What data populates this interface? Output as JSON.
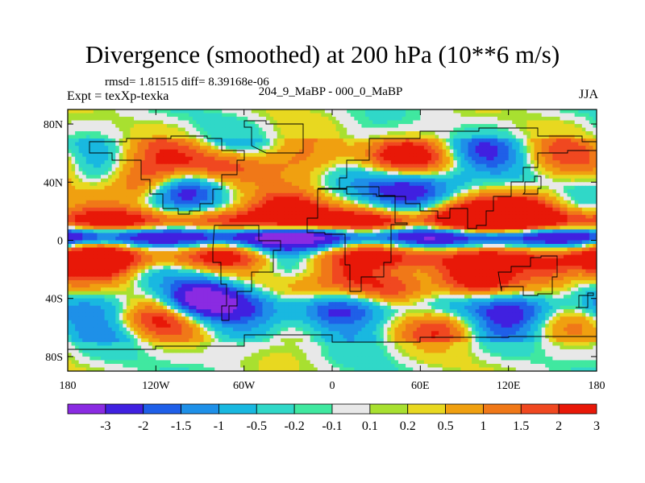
{
  "chart_data": {
    "type": "heatmap",
    "title": "Divergence (smoothed) at 200 hPa (10**6 m/s)",
    "left_annotation": "rmsd= 1.81515 diff= 8.39168e-06",
    "left_string": "Expt = texXp-texka",
    "center_string": "204_9_MaBP - 000_0_MaBP",
    "right_string": "JJA",
    "x_range": [
      -180,
      180
    ],
    "y_range": [
      -90,
      90
    ],
    "x_ticks": [
      {
        "value": -180,
        "label": "180"
      },
      {
        "value": -120,
        "label": "120W"
      },
      {
        "value": -60,
        "label": "60W"
      },
      {
        "value": 0,
        "label": "0"
      },
      {
        "value": 60,
        "label": "60E"
      },
      {
        "value": 120,
        "label": "120E"
      },
      {
        "value": 180,
        "label": "180"
      }
    ],
    "y_ticks": [
      {
        "value": 80,
        "label": "80N"
      },
      {
        "value": 40,
        "label": "40N"
      },
      {
        "value": 0,
        "label": "0"
      },
      {
        "value": -40,
        "label": "40S"
      },
      {
        "value": -80,
        "label": "80S"
      }
    ],
    "levels": [
      "-3",
      "-2",
      "-1.5",
      "-1",
      "-0.5",
      "-0.2",
      "-0.1",
      "0.1",
      "0.2",
      "0.5",
      "1",
      "1.5",
      "2",
      "3"
    ],
    "colors": [
      "#8a2be2",
      "#4020e0",
      "#1f5fe8",
      "#1e90e8",
      "#19b8e0",
      "#30d8c8",
      "#40e8a0",
      "#e8e8e8",
      "#a8e030",
      "#e8d820",
      "#f0a010",
      "#f07818",
      "#f04820",
      "#e81808"
    ],
    "features": [
      {
        "lon": -90,
        "lat": -40,
        "value": -3
      },
      {
        "lon": -30,
        "lat": 20,
        "value": 2.5
      },
      {
        "lon": 10,
        "lat": -25,
        "value": 2
      },
      {
        "lon": 40,
        "lat": -35,
        "value": 2.5
      },
      {
        "lon": 100,
        "lat": -25,
        "value": 2.5
      },
      {
        "lon": 150,
        "lat": -20,
        "value": 2.2
      },
      {
        "lon": -160,
        "lat": -15,
        "value": 3
      },
      {
        "lon": 90,
        "lat": 15,
        "value": 3
      },
      {
        "lon": 130,
        "lat": 20,
        "value": 2.5
      },
      {
        "lon": -100,
        "lat": 35,
        "value": -2.2
      },
      {
        "lon": -130,
        "lat": 40,
        "value": 2
      },
      {
        "lon": -70,
        "lat": 50,
        "value": 1.5
      },
      {
        "lon": 45,
        "lat": 60,
        "value": 1.8
      },
      {
        "lon": 100,
        "lat": 60,
        "value": -1.5
      },
      {
        "lon": 50,
        "lat": 35,
        "value": -2
      },
      {
        "lon": 75,
        "lat": 40,
        "value": -1.5
      },
      {
        "lon": -40,
        "lat": -10,
        "value": -1.5
      },
      {
        "lon": 0,
        "lat": -50,
        "value": -2
      },
      {
        "lon": -120,
        "lat": -50,
        "value": 1.5
      },
      {
        "lon": 130,
        "lat": -50,
        "value": -1.5
      },
      {
        "lon": 80,
        "lat": -60,
        "value": 1.2
      }
    ]
  }
}
